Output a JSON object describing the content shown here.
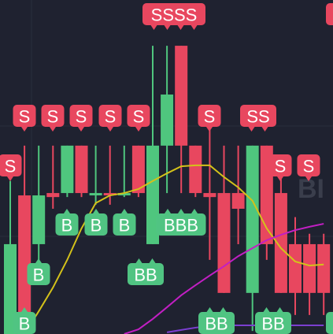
{
  "chart_data": {
    "type": "candlestick",
    "ylim": [
      0,
      100
    ],
    "up_color": "#4fc67e",
    "down_color": "#e8475f",
    "open": [
      0,
      41.5,
      26.9,
      42.2,
      42.2,
      56.4,
      41.5,
      42.2,
      41.5,
      56.4,
      26.9,
      56.4,
      86.3,
      56.4,
      42.2,
      42.2,
      42.2,
      12.3,
      56.4,
      42.2,
      26.9,
      26.9,
      26.9
    ],
    "high": [
      45.8,
      56.4,
      56.4,
      56.4,
      56.4,
      56.4,
      56.4,
      56.4,
      56.4,
      56.4,
      86.3,
      86.3,
      86.3,
      56.4,
      62.3,
      56.4,
      56.4,
      56.4,
      56.4,
      50,
      35,
      30,
      30
    ],
    "low": [
      0,
      0,
      22.2,
      37.5,
      41,
      41,
      38.7,
      38.7,
      41,
      41,
      26.9,
      42.2,
      42.2,
      41,
      22.2,
      12.3,
      26.9,
      0.9,
      22.2,
      12.3,
      5.7,
      5.7,
      5.7
    ],
    "close": [
      26.9,
      5.7,
      41.5,
      41,
      56.4,
      42.2,
      42.2,
      41.5,
      42.2,
      42.2,
      56.4,
      71.7,
      56.4,
      42.2,
      41,
      12.3,
      37.5,
      56.4,
      26.9,
      12.3,
      12.3,
      12.3,
      12.3
    ],
    "series": [
      {
        "color": "#d4c21a",
        "values": [
          null,
          0,
          6.8,
          13.9,
          22.2,
          31.6,
          39.2,
          41.5,
          42.2,
          43.4,
          45.8,
          48.1,
          50.2,
          50.5,
          50.5,
          47,
          43.9,
          39.9,
          31.6,
          25.7,
          21.7,
          20.5,
          20.8
        ]
      },
      {
        "color": "#c21fc4",
        "values": [
          null,
          null,
          null,
          null,
          null,
          null,
          null,
          null,
          0,
          1.4,
          4.5,
          8,
          11.6,
          14.6,
          17.5,
          20.3,
          23.3,
          25.7,
          28.1,
          29.7,
          31.1,
          32.1,
          33
        ]
      },
      {
        "color": "#7b3fd1",
        "values": [
          null,
          null,
          null,
          null,
          null,
          null,
          null,
          null,
          null,
          null,
          null,
          0.5,
          1.2,
          1.9,
          2.4,
          2.6,
          2.6,
          2.6,
          2.6,
          2.6,
          2.6,
          2.6,
          2.6
        ]
      }
    ],
    "annotations": [
      "S",
      "S",
      "S",
      "S",
      "S",
      "S",
      "SSSS",
      "S",
      "SS",
      "S",
      "S",
      "B",
      "B",
      "B",
      "BBB",
      "B",
      "BB",
      "B",
      "BB",
      "BB"
    ],
    "watermark": "BI"
  }
}
